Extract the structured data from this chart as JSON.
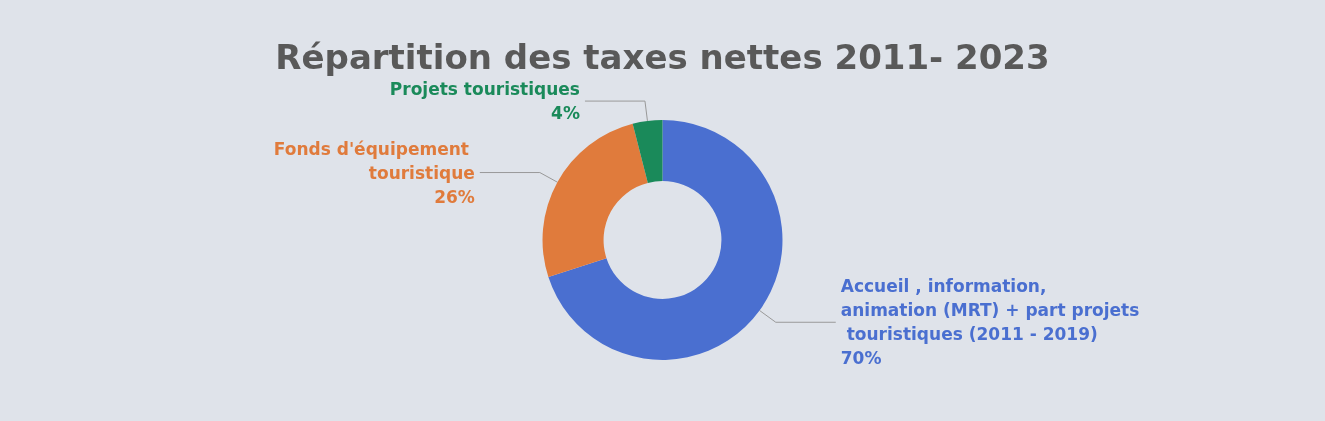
{
  "chart_data": {
    "type": "donut",
    "title": "Répartition des taxes nettes 2011- 2023",
    "categories": [
      "Accueil , information, animation (MRT) + part projets touristiques (2011 - 2019)",
      "Fonds d'équipement touristique",
      "Projets touristiques"
    ],
    "values": [
      70,
      26,
      4
    ],
    "value_labels": [
      "70%",
      "26%",
      "4%"
    ],
    "colors": [
      "#4a6fd0",
      "#e07b3c",
      "#1a8a5a"
    ],
    "legend": false
  }
}
